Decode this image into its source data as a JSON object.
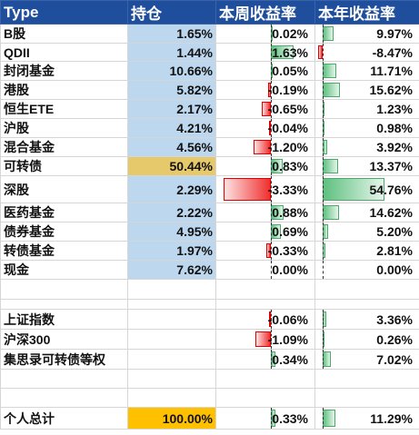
{
  "headers": {
    "name": "Type",
    "holding": "持仓",
    "week": "本周收益率",
    "year": "本年收益率"
  },
  "rows": [
    {
      "name": "B股",
      "holding": "1.65%",
      "week": "0.02%",
      "year": "9.97%",
      "week_value": 0.02,
      "year_value": 9.97
    },
    {
      "name": "QDII",
      "holding": "1.44%",
      "week": "1.63%",
      "year": "-8.47%",
      "week_value": 1.63,
      "year_value": -8.47
    },
    {
      "name": "封闭基金",
      "holding": "10.66%",
      "week": "0.05%",
      "year": "11.71%",
      "week_value": 0.05,
      "year_value": 11.71
    },
    {
      "name": "港股",
      "holding": "5.82%",
      "week": "-0.19%",
      "year": "15.62%",
      "week_value": -0.19,
      "year_value": 15.62
    },
    {
      "name": "恒生ETE",
      "holding": "2.17%",
      "week": "-0.65%",
      "year": "1.23%",
      "week_value": -0.65,
      "year_value": 1.23
    },
    {
      "name": "沪股",
      "holding": "4.21%",
      "week": "-0.04%",
      "year": "0.98%",
      "week_value": -0.04,
      "year_value": 0.98
    },
    {
      "name": "混合基金",
      "holding": "4.56%",
      "week": "-1.20%",
      "year": "3.92%",
      "week_value": -1.2,
      "year_value": 3.92
    },
    {
      "name": "可转债",
      "holding": "50.44%",
      "week": "0.83%",
      "year": "13.37%",
      "week_value": 0.83,
      "year_value": 13.37,
      "highlight": true
    },
    {
      "name": "深股",
      "holding": "2.29%",
      "week": "-3.33%",
      "year": "54.76%",
      "week_value": -3.33,
      "year_value": 54.76,
      "tall": true
    },
    {
      "name": "医药基金",
      "holding": "2.22%",
      "week": "0.88%",
      "year": "14.62%",
      "week_value": 0.88,
      "year_value": 14.62
    },
    {
      "name": "债券基金",
      "holding": "4.95%",
      "week": "0.69%",
      "year": "5.20%",
      "week_value": 0.69,
      "year_value": 5.2
    },
    {
      "name": "转债基金",
      "holding": "1.97%",
      "week": "-0.33%",
      "year": "2.81%",
      "week_value": -0.33,
      "year_value": 2.81
    },
    {
      "name": "现金",
      "holding": "7.62%",
      "week": "0.00%",
      "year": "0.00%",
      "week_value": 0.0,
      "year_value": 0.0
    }
  ],
  "indices": [
    {
      "name": "上证指数",
      "week": "-0.06%",
      "year": "3.36%",
      "week_value": -0.06,
      "year_value": 3.36
    },
    {
      "name": "沪深300",
      "week": "-1.09%",
      "year": "0.26%",
      "week_value": -1.09,
      "year_value": 0.26
    },
    {
      "name": "集思录可转债等权",
      "week": "0.34%",
      "year": "7.02%",
      "week_value": 0.34,
      "year_value": 7.02
    }
  ],
  "total": {
    "name": "个人总计",
    "holding": "100.00%",
    "week": "0.33%",
    "year": "11.29%",
    "week_value": 0.33,
    "year_value": 11.29
  },
  "colors": {
    "header_bg": "#1f4e9c",
    "holding_bg": "#bdd7ee",
    "highlight_bg": "#e6c96b",
    "total_bg": "#ffc000",
    "positive_bar": "#5ec07f",
    "negative_bar": "#f03030"
  }
}
